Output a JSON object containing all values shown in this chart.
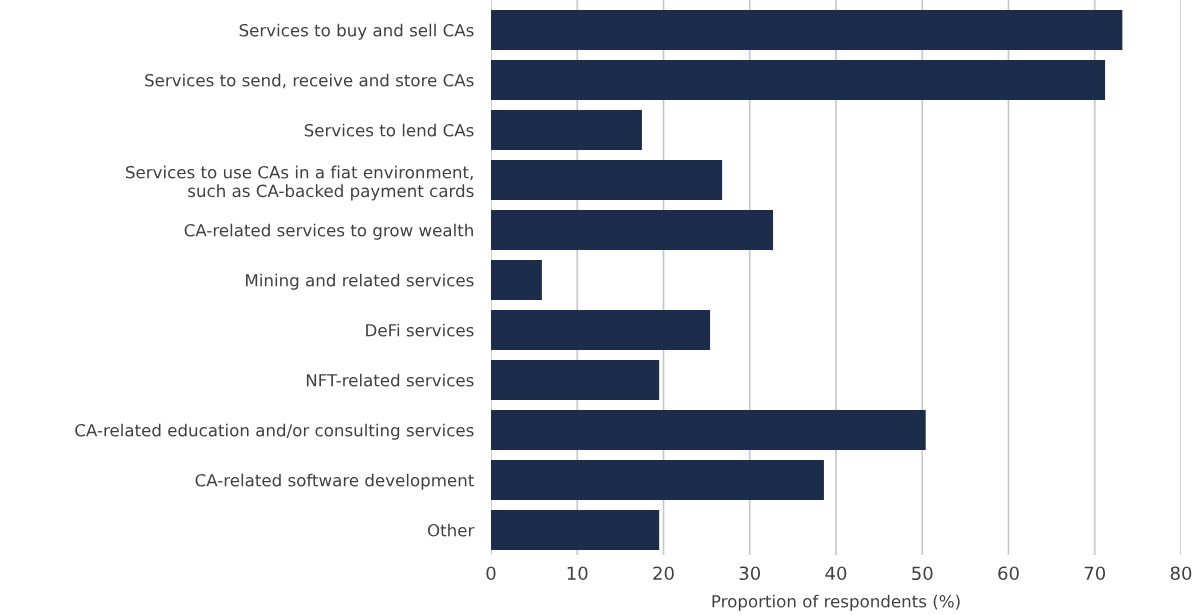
{
  "chart_data": {
    "type": "bar",
    "orientation": "horizontal",
    "categories": [
      "Services to buy and sell CAs",
      "Services to send, receive and store CAs",
      "Services to lend CAs",
      "Services to use CAs in a fiat environment,\nsuch as CA-backed payment cards",
      "CA-related services to grow wealth",
      "Mining and related services",
      "DeFi services",
      "NFT-related services",
      "CA-related education and/or consulting services",
      "CA-related software development",
      "Other"
    ],
    "values": [
      73.2,
      71.2,
      17.5,
      26.8,
      32.7,
      5.9,
      25.4,
      19.5,
      50.4,
      38.6,
      19.5
    ],
    "color": "#1b2d4a",
    "xlabel": "Proportion of respondents (%)",
    "xlim": [
      0,
      80
    ],
    "xticks": [
      0,
      10,
      20,
      30,
      40,
      50,
      60,
      70,
      80
    ],
    "grid": "x",
    "legend": false
  }
}
